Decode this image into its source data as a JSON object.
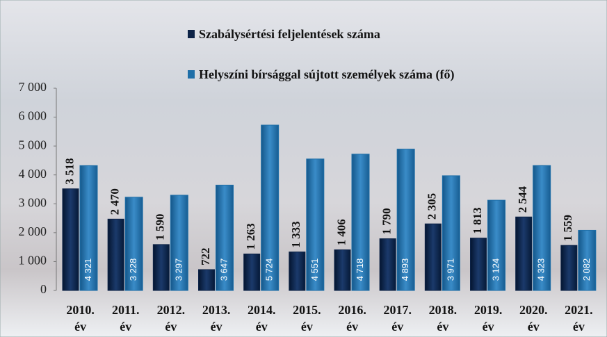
{
  "chart_data": {
    "type": "bar",
    "categories": [
      "2010. év",
      "2011. év",
      "2012. év",
      "2013. év",
      "2014. év",
      "2015. év",
      "2016. év",
      "2017. év",
      "2018. év",
      "2019. év",
      "2020. év",
      "2021. év"
    ],
    "series": [
      {
        "name": "Szabálysértési feljelentések száma",
        "color": "#0d2347",
        "values": [
          3518,
          2470,
          1590,
          722,
          1263,
          1333,
          1406,
          1790,
          2305,
          1813,
          2544,
          1559
        ],
        "value_labels": [
          "3 518",
          "2 470",
          "1 590",
          "722",
          "1 263",
          "1 333",
          "1 406",
          "1 790",
          "2 305",
          "1 813",
          "2 544",
          "1 559"
        ]
      },
      {
        "name": "Helyszíni bírsággal sújtott személyek száma (fő)",
        "color": "#1f6fa8",
        "values": [
          4321,
          3228,
          3297,
          3647,
          5724,
          4551,
          4718,
          4893,
          3971,
          3124,
          4323,
          2082
        ],
        "value_labels": [
          "4 321",
          "3 228",
          "3 297",
          "3 647",
          "5 724",
          "4 551",
          "4 718",
          "4 893",
          "3 971",
          "3 124",
          "4 323",
          "2 082"
        ]
      }
    ],
    "ylim": [
      0,
      7000
    ],
    "yticks": [
      0,
      {
        "value": 1000,
        "label": "1 000"
      },
      {
        "value": 2000,
        "label": "2 000"
      },
      {
        "value": 3000,
        "label": "3 000"
      },
      {
        "value": 4000,
        "label": "4 000"
      },
      {
        "value": 5000,
        "label": "5 000"
      },
      {
        "value": 6000,
        "label": "6 000"
      },
      {
        "value": 7000,
        "label": "7 000"
      }
    ]
  }
}
